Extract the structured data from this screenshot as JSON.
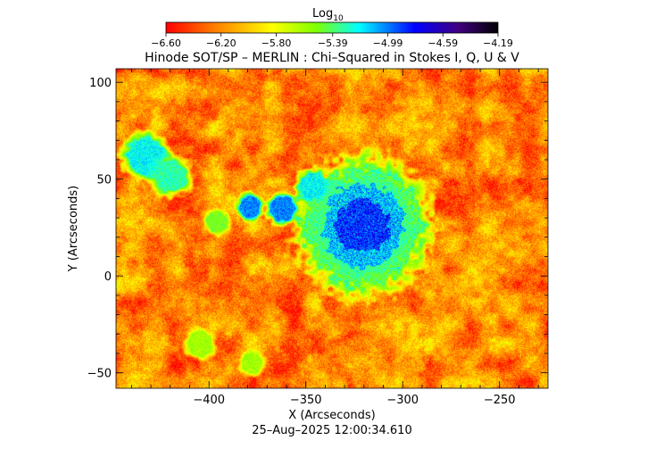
{
  "chart_data": {
    "type": "heatmap",
    "title": "Hinode SOT/SP – MERLIN : Chi–Squared in Stokes I, Q, U & V",
    "colorbar": {
      "label_main": "Log",
      "label_sub": "10",
      "tick_labels": [
        "−6.60",
        "−6.20",
        "−5.80",
        "−5.39",
        "−4.99",
        "−4.59",
        "−4.19"
      ],
      "ticks": [
        -6.6,
        -6.2,
        -5.8,
        -5.39,
        -4.99,
        -4.59,
        -4.19
      ],
      "range": [
        -6.6,
        -4.19
      ],
      "colormap": [
        "#ff0000",
        "#ff8000",
        "#ffff00",
        "#80ff00",
        "#00ffff",
        "#0000ff",
        "#400080",
        "#000000"
      ]
    },
    "x_axis": {
      "label": "X (Arcseconds)",
      "range": [
        -448,
        -225
      ],
      "ticks": [
        -400,
        -350,
        -300,
        -250
      ],
      "tick_labels": [
        "−400",
        "−350",
        "−300",
        "−250"
      ]
    },
    "y_axis": {
      "label": "Y (Arcseconds)",
      "range": [
        -58,
        107
      ],
      "ticks": [
        -50,
        0,
        50,
        100
      ],
      "tick_labels": [
        "−50",
        "0",
        "50",
        "100"
      ]
    },
    "background_level": -6.2,
    "features": [
      {
        "kind": "sunspot",
        "center": [
          -321,
          26
        ],
        "radius": 25,
        "level": -4.9
      },
      {
        "kind": "plage",
        "center": [
          -433,
          62
        ],
        "radius": 9,
        "level": -5.2
      },
      {
        "kind": "plage",
        "center": [
          -420,
          52
        ],
        "radius": 8,
        "level": -5.3
      },
      {
        "kind": "plage",
        "center": [
          -379,
          36
        ],
        "radius": 5,
        "level": -5.0
      },
      {
        "kind": "plage",
        "center": [
          -362,
          35
        ],
        "radius": 6,
        "level": -5.0
      },
      {
        "kind": "plage",
        "center": [
          -347,
          47
        ],
        "radius": 6,
        "level": -5.2
      },
      {
        "kind": "plage",
        "center": [
          -396,
          28
        ],
        "radius": 5,
        "level": -5.5
      },
      {
        "kind": "plage",
        "center": [
          -405,
          -35
        ],
        "radius": 6,
        "level": -5.6
      },
      {
        "kind": "plage",
        "center": [
          -378,
          -45
        ],
        "radius": 5,
        "level": -5.6
      }
    ],
    "timestamp": "25–Aug–2025 12:00:34.610"
  }
}
